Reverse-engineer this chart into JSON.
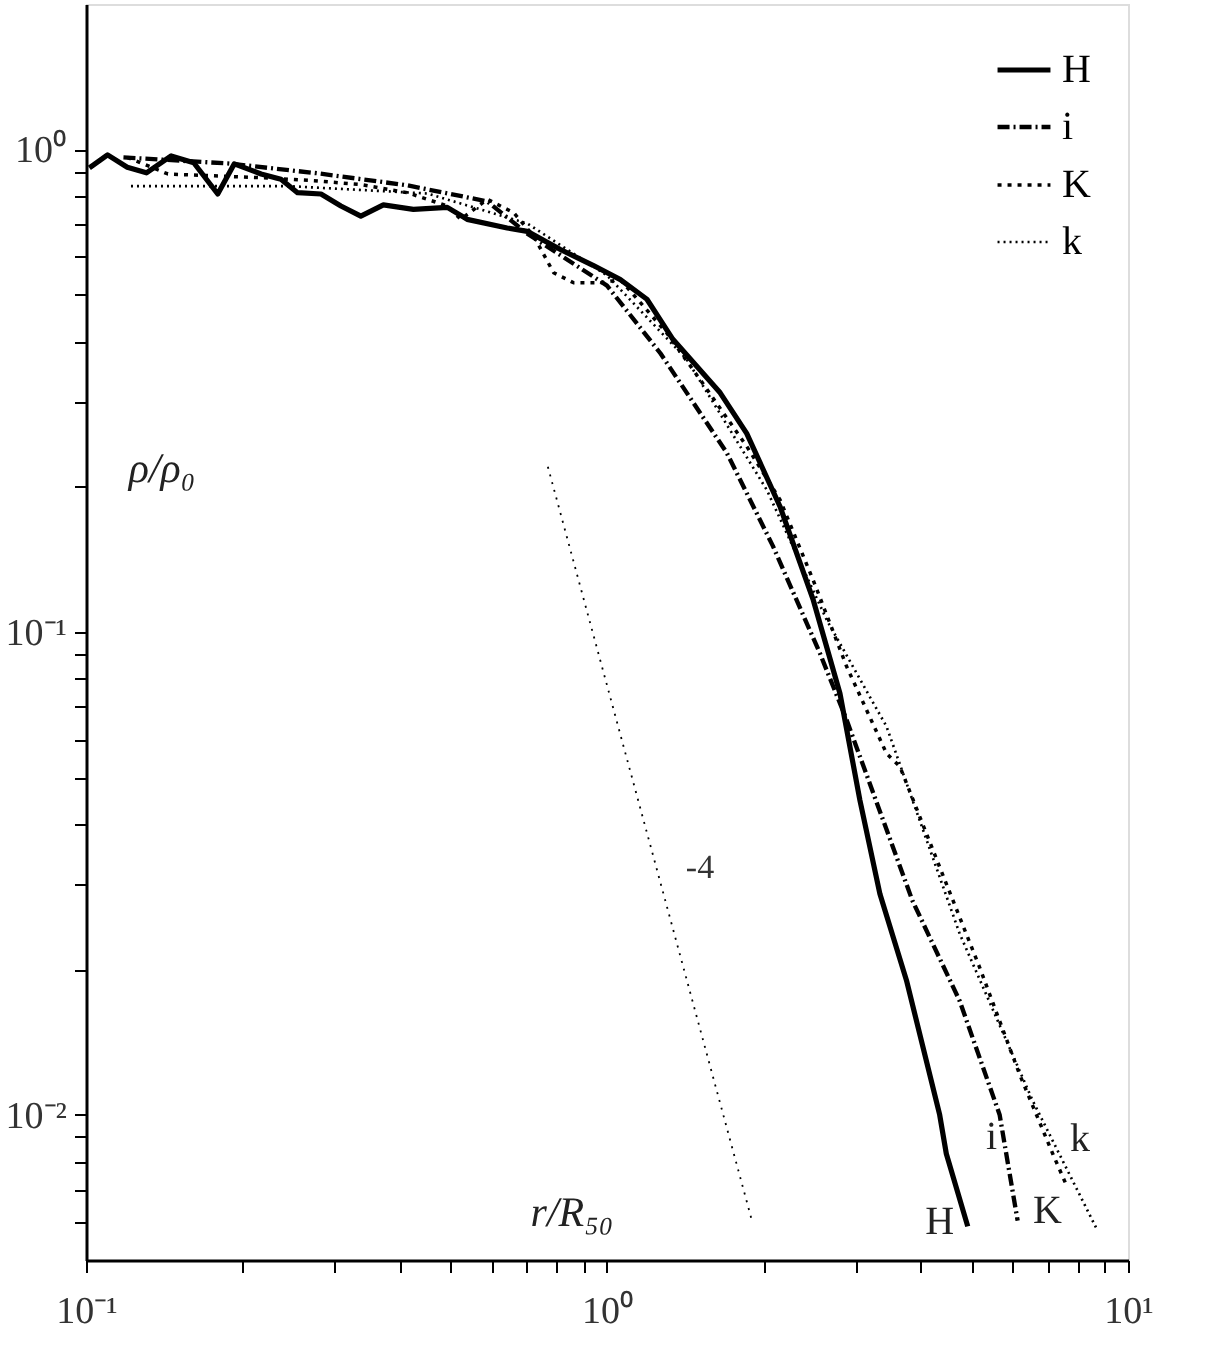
{
  "chart_data": {
    "type": "line",
    "xlabel": "r/R₅₀",
    "ylabel": "ρ/ρ₀",
    "log": "xy",
    "grid": false,
    "legend": "top right",
    "marker": "none",
    "xlim": [
      0.1,
      10
    ],
    "ylim": [
      0.005,
      2
    ],
    "xticks": [
      {
        "value": 0.1,
        "label": "10⁻¹"
      },
      {
        "value": 0.2,
        "label": null
      },
      {
        "value": 0.3,
        "label": null
      },
      {
        "value": 0.4,
        "label": null
      },
      {
        "value": 0.5,
        "label": null
      },
      {
        "value": 0.6,
        "label": null
      },
      {
        "value": 0.7,
        "label": null
      },
      {
        "value": 0.8,
        "label": null
      },
      {
        "value": 0.9,
        "label": null
      },
      {
        "value": 1,
        "label": "10⁰"
      },
      {
        "value": 2,
        "label": null
      },
      {
        "value": 3,
        "label": null
      },
      {
        "value": 4,
        "label": null
      },
      {
        "value": 5,
        "label": null
      },
      {
        "value": 6,
        "label": null
      },
      {
        "value": 7,
        "label": null
      },
      {
        "value": 8,
        "label": null
      },
      {
        "value": 9,
        "label": null
      },
      {
        "value": 10,
        "label": "10¹"
      }
    ],
    "yticks": [
      {
        "value": 0.006,
        "label": null
      },
      {
        "value": 0.007,
        "label": null
      },
      {
        "value": 0.008,
        "label": null
      },
      {
        "value": 0.009,
        "label": null
      },
      {
        "value": 0.01,
        "label": "10⁻²"
      },
      {
        "value": 0.02,
        "label": null
      },
      {
        "value": 0.03,
        "label": null
      },
      {
        "value": 0.04,
        "label": null
      },
      {
        "value": 0.05,
        "label": null
      },
      {
        "value": 0.06,
        "label": null
      },
      {
        "value": 0.07,
        "label": null
      },
      {
        "value": 0.08,
        "label": null
      },
      {
        "value": 0.09,
        "label": null
      },
      {
        "value": 0.1,
        "label": "10⁻¹"
      },
      {
        "value": 0.2,
        "label": null
      },
      {
        "value": 0.3,
        "label": null
      },
      {
        "value": 0.4,
        "label": null
      },
      {
        "value": 0.5,
        "label": null
      },
      {
        "value": 0.6,
        "label": null
      },
      {
        "value": 0.7,
        "label": null
      },
      {
        "value": 0.8,
        "label": null
      },
      {
        "value": 0.9,
        "label": null
      },
      {
        "value": 1,
        "label": "10⁰"
      }
    ],
    "annotations": [
      "-4"
    ],
    "series": [
      {
        "name": "H",
        "color": "#000000",
        "line_style": "solid",
        "x": [
          0.1015,
          0.11,
          0.12,
          0.1306,
          0.1457,
          0.161,
          0.179,
          0.1926,
          0.2168,
          0.2367,
          0.2547,
          0.2825,
          0.3085,
          0.3369,
          0.3722,
          0.425,
          0.4937,
          0.539,
          0.6433,
          0.703,
          0.814,
          0.94,
          1.061,
          1.193,
          1.338,
          1.649,
          1.854,
          2.148,
          2.488,
          2.8,
          3.058,
          3.34,
          3.756,
          4.35,
          4.48,
          4.925
        ],
        "values": [
          0.915,
          0.974,
          0.918,
          0.894,
          0.969,
          0.938,
          0.808,
          0.933,
          0.889,
          0.867,
          0.813,
          0.808,
          0.763,
          0.727,
          0.767,
          0.751,
          0.758,
          0.716,
          0.687,
          0.676,
          0.62,
          0.575,
          0.537,
          0.489,
          0.404,
          0.313,
          0.258,
          0.182,
          0.1165,
          0.0746,
          0.0448,
          0.0287,
          0.019,
          0.01,
          0.0083,
          0.00587
        ]
      },
      {
        "name": "i",
        "color": "#000000",
        "line_style": "dashdot",
        "x": [
          0.118,
          0.187,
          0.278,
          0.414,
          0.589,
          0.703,
          1.0,
          1.266,
          1.698,
          2.08,
          2.563,
          2.884,
          3.855,
          4.753,
          5.67,
          6.14
        ],
        "values": [
          0.962,
          0.935,
          0.892,
          0.842,
          0.78,
          0.669,
          0.522,
          0.378,
          0.235,
          0.151,
          0.0903,
          0.0657,
          0.0278,
          0.0172,
          0.01,
          0.00603
        ]
      },
      {
        "name": "K",
        "color": "#000000",
        "line_style": "dotted",
        "x": [
          0.12,
          0.1436,
          0.1764,
          0.2233,
          0.274,
          0.337,
          0.414,
          0.494,
          0.524,
          0.589,
          0.662,
          0.723,
          0.79,
          0.863,
          0.971,
          1.061,
          1.303,
          1.51,
          1.854,
          2.148,
          2.488,
          2.884,
          3.44,
          3.65,
          4.35,
          5.19,
          6.19,
          7.17,
          7.65
        ],
        "values": [
          0.962,
          0.889,
          0.881,
          0.872,
          0.861,
          0.845,
          0.813,
          0.763,
          0.716,
          0.788,
          0.739,
          0.661,
          0.555,
          0.529,
          0.529,
          0.537,
          0.416,
          0.333,
          0.2425,
          0.188,
          0.128,
          0.0848,
          0.056,
          0.0526,
          0.0326,
          0.0202,
          0.01214,
          0.0083,
          0.00707
        ]
      },
      {
        "name": "k",
        "color": "#000000",
        "line_style": "dotted",
        "x": [
          0.122,
          0.244,
          0.452,
          0.703,
          1.0,
          1.423,
          2.026,
          2.64,
          3.44,
          4.753,
          6.56,
          8.68
        ],
        "values": [
          0.839,
          0.839,
          0.81,
          0.702,
          0.548,
          0.367,
          0.197,
          0.106,
          0.0637,
          0.0237,
          0.0107,
          0.00584
        ]
      },
      {
        "color": "#000000",
        "line_style": "dotted",
        "x": [
          0.77,
          1.9
        ],
        "values": [
          0.22,
          0.006
        ]
      }
    ]
  }
}
